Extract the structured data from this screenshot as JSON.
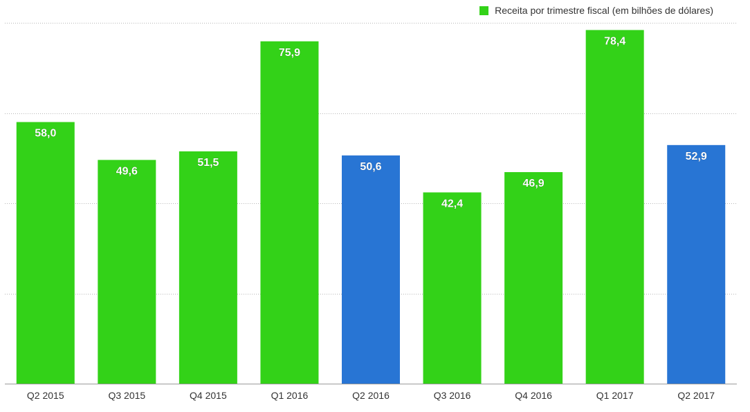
{
  "chart_data": {
    "type": "bar",
    "categories": [
      "Q2 2015",
      "Q3 2015",
      "Q4 2015",
      "Q1 2016",
      "Q2 2016",
      "Q3 2016",
      "Q4 2016",
      "Q1 2017",
      "Q2 2017"
    ],
    "series": [
      {
        "name": "Receita por trimestre fiscal (em bilhões de dólares)",
        "values": [
          58.0,
          49.6,
          51.5,
          75.9,
          50.6,
          42.4,
          46.9,
          78.4,
          52.9
        ]
      }
    ],
    "value_labels": [
      "58,0",
      "49,6",
      "51,5",
      "75,9",
      "50,6",
      "42,4",
      "46,9",
      "78,4",
      "52,9"
    ],
    "highlighted_categories": [
      "Q2 2016",
      "Q2 2017"
    ],
    "ylim": [
      0,
      80
    ],
    "y_gridlines": [
      20,
      40,
      60,
      80
    ],
    "grid": true,
    "legend_position": "top-right",
    "colors": {
      "bar": "#33d218",
      "highlight": "#2875d4",
      "grid": "#b5b5b5",
      "axis_label": "#333333",
      "value_label": "#ffffff"
    }
  }
}
